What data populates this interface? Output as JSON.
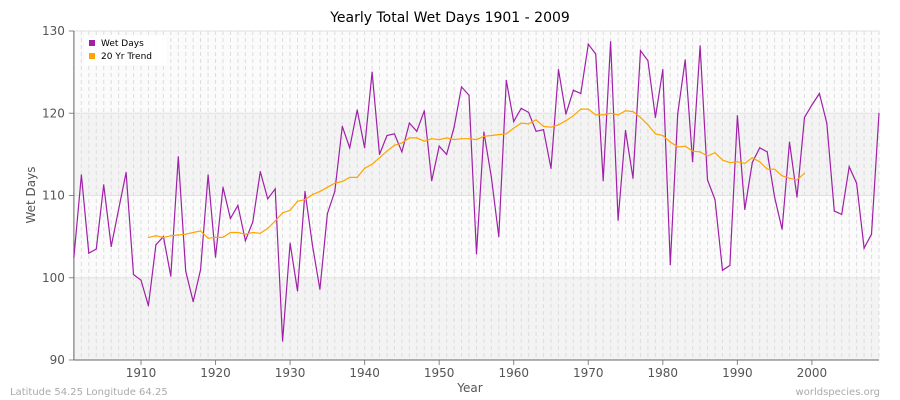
{
  "chart_data": {
    "type": "line",
    "title": "Yearly Total Wet Days 1901 - 2009",
    "xlabel": "Year",
    "ylabel": "Wet Days",
    "xlim": [
      1901,
      2009
    ],
    "ylim": [
      90,
      130
    ],
    "xticks": [
      1910,
      1920,
      1930,
      1940,
      1950,
      1960,
      1970,
      1980,
      1990,
      2000
    ],
    "yticks": [
      90,
      100,
      110,
      120,
      130
    ],
    "grid": true,
    "legend_position": "top-left",
    "series": [
      {
        "name": "Wet Days",
        "color": "#a020a8",
        "x_start": 1901,
        "values": [
          102.5,
          112.5,
          103,
          103.5,
          111.3,
          103.8,
          108.3,
          112.8,
          100.4,
          99.7,
          96.6,
          104,
          105,
          100.2,
          114.7,
          100.8,
          97.1,
          101,
          112.5,
          102.5,
          111,
          107.2,
          108.8,
          104.5,
          106.8,
          112.9,
          109.6,
          110.8,
          92.3,
          104.2,
          98.4,
          110.5,
          104,
          98.6,
          107.8,
          110.5,
          118.4,
          115.8,
          120.4,
          115.8,
          125,
          115,
          117.3,
          117.5,
          115.3,
          118.8,
          117.8,
          120.3,
          111.8,
          116,
          115,
          118.3,
          123.2,
          122.2,
          102.9,
          117.7,
          112.2,
          105,
          124,
          119,
          120.6,
          120.1,
          117.8,
          118,
          113.3,
          125.3,
          119.9,
          122.8,
          122.4,
          128.4,
          127.2,
          111.8,
          128.7,
          107,
          117.9,
          112.1,
          127.6,
          126.4,
          119.5,
          125.3,
          101.6,
          119.9,
          126.5,
          114.1,
          128.2,
          111.9,
          109.5,
          100.9,
          101.5,
          119.7,
          108.3,
          114,
          115.8,
          115.3,
          109.8,
          105.9,
          116.5,
          109.8,
          119.5,
          121,
          122.4,
          118.8,
          108.1,
          107.7,
          113.5,
          111.5,
          103.6,
          105.3,
          120
        ]
      },
      {
        "name": "20 Yr Trend",
        "color": "#ffa500",
        "x_start": 1911,
        "values": [
          104.9,
          105.1,
          104.9,
          105.1,
          105.2,
          105.3,
          105.5,
          105.7,
          104.8,
          104.9,
          104.9,
          105.5,
          105.5,
          105.3,
          105.5,
          105.4,
          106,
          106.9,
          107.9,
          108.2,
          109.3,
          109.5,
          110.1,
          110.5,
          111,
          111.5,
          111.7,
          112.2,
          112.2,
          113.3,
          113.8,
          114.6,
          115.4,
          116.1,
          116.4,
          117,
          117,
          116.6,
          116.9,
          116.8,
          117,
          116.8,
          116.9,
          116.9,
          116.8,
          117.2,
          117.3,
          117.4,
          117.5,
          118.2,
          118.8,
          118.7,
          119.2,
          118.4,
          118.3,
          118.6,
          119.1,
          119.7,
          120.5,
          120.5,
          119.8,
          119.8,
          120,
          119.8,
          120.3,
          120.2,
          119.5,
          118.6,
          117.5,
          117.3,
          116.5,
          115.9,
          116,
          115.4,
          115.3,
          114.8,
          115.2,
          114.3,
          114,
          114.1,
          113.9,
          114.6,
          114.1,
          113.2,
          113.2,
          112.4,
          112.1,
          111.9,
          112.7
        ]
      }
    ]
  },
  "footer": {
    "left": "Latitude 54.25 Longitude 64.25",
    "right": "worldspecies.org"
  }
}
